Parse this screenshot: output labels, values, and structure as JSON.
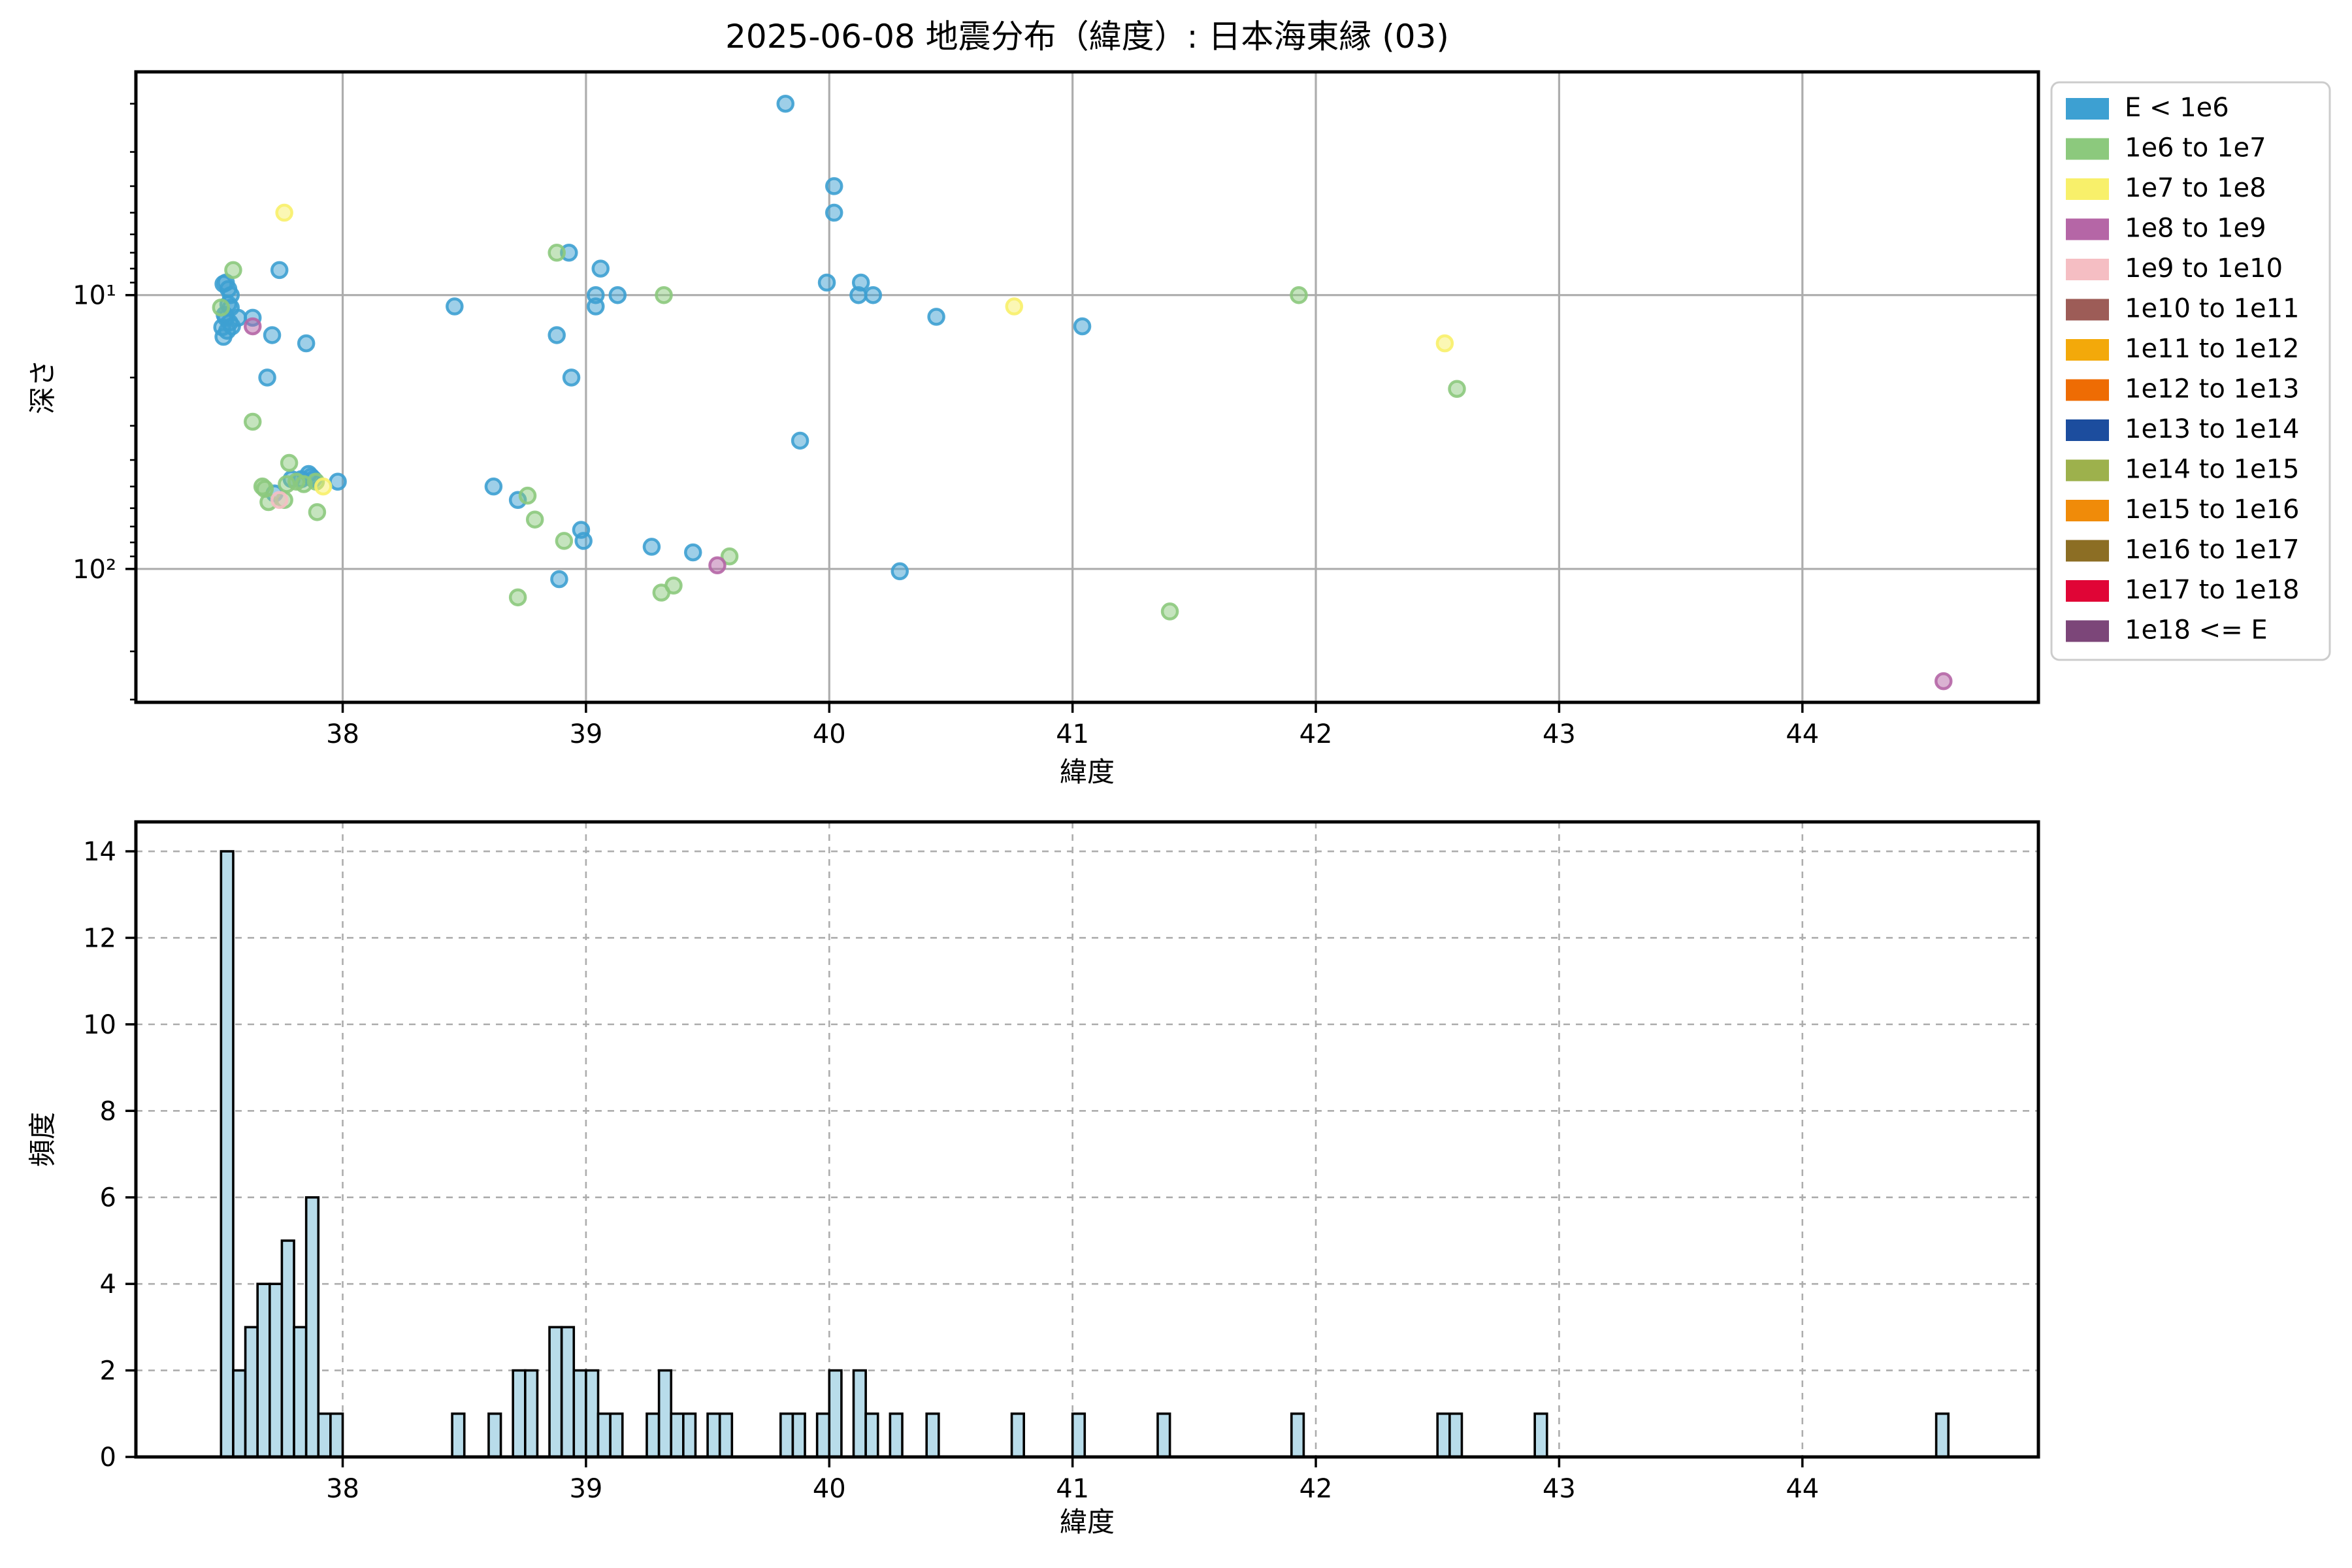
{
  "title": "2025-06-08 地震分布（緯度）: 日本海東縁 (03)",
  "legend": {
    "entries": [
      {
        "label": "E < 1e6",
        "color": "#3da0d2"
      },
      {
        "label": "1e6 to 1e7",
        "color": "#8cc97d"
      },
      {
        "label": "1e7 to 1e8",
        "color": "#f8f06a"
      },
      {
        "label": "1e8 to 1e9",
        "color": "#b566a6"
      },
      {
        "label": "1e9 to 1e10",
        "color": "#f5bec3"
      },
      {
        "label": "1e10 to 1e11",
        "color": "#9d5c57"
      },
      {
        "label": "1e11 to 1e12",
        "color": "#f3a90a"
      },
      {
        "label": "1e12 to 1e13",
        "color": "#ee6c04"
      },
      {
        "label": "1e13 to 1e14",
        "color": "#1c4d9e"
      },
      {
        "label": "1e14 to 1e15",
        "color": "#9db14c"
      },
      {
        "label": "1e15 to 1e16",
        "color": "#f08b09"
      },
      {
        "label": "1e16 to 1e17",
        "color": "#8c6e24"
      },
      {
        "label": "1e17 to 1e18",
        "color": "#e00536"
      },
      {
        "label": "1e18 <= E",
        "color": "#7c4679"
      }
    ]
  },
  "chart_data": [
    {
      "type": "scatter",
      "title": "",
      "xlabel": "緯度",
      "ylabel": "深さ",
      "x_range": [
        37.15,
        44.97
      ],
      "y_log_range": [
        1.53,
        307
      ],
      "y_inverted": true,
      "grid": "solid",
      "xticks": [
        38,
        39,
        40,
        41,
        42,
        43,
        44
      ],
      "yticks": [
        {
          "value": 10,
          "label": "10¹"
        },
        {
          "value": 100,
          "label": "10²"
        }
      ],
      "yminor": [
        2,
        3,
        4,
        5,
        6,
        7,
        8,
        9,
        20,
        30,
        40,
        50,
        60,
        70,
        80,
        90,
        200,
        300
      ],
      "series": [
        {
          "name": "E < 1e6",
          "color": "#3da0d2",
          "points": [
            [
              37.505,
              13.1
            ],
            [
              37.51,
              9.1
            ],
            [
              37.515,
              11.8
            ],
            [
              37.52,
              9.0
            ],
            [
              37.52,
              12.1
            ],
            [
              37.525,
              13.5
            ],
            [
              37.53,
              9.5
            ],
            [
              37.535,
              12.6
            ],
            [
              37.54,
              10.0
            ],
            [
              37.54,
              11.1
            ],
            [
              37.545,
              13.0
            ],
            [
              37.51,
              14.2
            ],
            [
              37.53,
              10.8
            ],
            [
              37.57,
              12.1
            ],
            [
              37.63,
              12.1
            ],
            [
              37.69,
              20
            ],
            [
              37.71,
              14
            ],
            [
              37.72,
              53
            ],
            [
              37.74,
              8.1
            ],
            [
              37.79,
              47
            ],
            [
              37.83,
              47
            ],
            [
              37.85,
              15
            ],
            [
              37.86,
              45
            ],
            [
              37.87,
              46
            ],
            [
              37.88,
              47
            ],
            [
              37.98,
              48
            ],
            [
              38.46,
              11
            ],
            [
              38.62,
              50
            ],
            [
              38.72,
              56
            ],
            [
              38.88,
              14
            ],
            [
              38.89,
              109
            ],
            [
              38.93,
              7
            ],
            [
              38.94,
              20
            ],
            [
              38.98,
              72
            ],
            [
              38.99,
              79
            ],
            [
              39.04,
              10
            ],
            [
              39.04,
              11
            ],
            [
              39.06,
              8
            ],
            [
              39.13,
              10
            ],
            [
              39.27,
              83
            ],
            [
              39.44,
              87
            ],
            [
              39.82,
              2.0
            ],
            [
              39.88,
              34
            ],
            [
              39.99,
              9
            ],
            [
              40.02,
              4.0
            ],
            [
              40.02,
              5.0
            ],
            [
              40.12,
              10
            ],
            [
              40.13,
              9
            ],
            [
              40.18,
              10
            ],
            [
              40.29,
              102
            ],
            [
              40.44,
              12
            ],
            [
              41.04,
              13
            ]
          ]
        },
        {
          "name": "1e6 to 1e7",
          "color": "#8cc97d",
          "points": [
            [
              37.5,
              11.1
            ],
            [
              37.55,
              8.1
            ],
            [
              37.63,
              29
            ],
            [
              37.67,
              50
            ],
            [
              37.68,
              51
            ],
            [
              37.695,
              57
            ],
            [
              37.76,
              56
            ],
            [
              37.77,
              49
            ],
            [
              37.78,
              41
            ],
            [
              37.81,
              48
            ],
            [
              37.84,
              49
            ],
            [
              37.89,
              48
            ],
            [
              37.895,
              62
            ],
            [
              38.76,
              54
            ],
            [
              38.79,
              66
            ],
            [
              38.88,
              7
            ],
            [
              38.91,
              79
            ],
            [
              38.72,
              127
            ],
            [
              39.31,
              122
            ],
            [
              39.32,
              10
            ],
            [
              39.36,
              115
            ],
            [
              39.59,
              90
            ],
            [
              41.4,
              143
            ],
            [
              41.93,
              10
            ],
            [
              42.58,
              22
            ]
          ]
        },
        {
          "name": "1e7 to 1e8",
          "color": "#f8f06a",
          "points": [
            [
              37.76,
              5.0
            ],
            [
              37.92,
              50
            ],
            [
              40.76,
              11
            ],
            [
              42.53,
              15
            ]
          ]
        },
        {
          "name": "1e8 to 1e9",
          "color": "#b566a6",
          "points": [
            [
              37.63,
              13.0
            ],
            [
              39.54,
              97
            ],
            [
              44.58,
              257
            ]
          ]
        },
        {
          "name": "1e9 to 1e10",
          "color": "#f5bec3",
          "points": [
            [
              37.74,
              56
            ]
          ]
        }
      ]
    },
    {
      "type": "bar",
      "title": "",
      "xlabel": "緯度",
      "ylabel": "頻度",
      "x_range": [
        37.15,
        44.97
      ],
      "ylim": [
        0,
        14.68
      ],
      "grid": "dashed",
      "xticks": [
        38,
        39,
        40,
        41,
        42,
        43,
        44
      ],
      "yticks": [
        0,
        2,
        4,
        6,
        8,
        10,
        12,
        14
      ],
      "bin_width": 0.05,
      "bar_color": "#b8dcea",
      "bar_edge": "#000000",
      "bins": [
        [
          37.5,
          14
        ],
        [
          37.55,
          2
        ],
        [
          37.6,
          3
        ],
        [
          37.65,
          4
        ],
        [
          37.7,
          4
        ],
        [
          37.75,
          5
        ],
        [
          37.8,
          3
        ],
        [
          37.85,
          6
        ],
        [
          37.9,
          1
        ],
        [
          37.95,
          1
        ],
        [
          38.45,
          1
        ],
        [
          38.6,
          1
        ],
        [
          38.7,
          2
        ],
        [
          38.75,
          2
        ],
        [
          38.85,
          3
        ],
        [
          38.9,
          3
        ],
        [
          38.95,
          2
        ],
        [
          39.0,
          2
        ],
        [
          39.05,
          1
        ],
        [
          39.1,
          1
        ],
        [
          39.25,
          1
        ],
        [
          39.3,
          2
        ],
        [
          39.35,
          1
        ],
        [
          39.4,
          1
        ],
        [
          39.5,
          1
        ],
        [
          39.55,
          1
        ],
        [
          39.8,
          1
        ],
        [
          39.85,
          1
        ],
        [
          39.95,
          1
        ],
        [
          40.0,
          2
        ],
        [
          40.1,
          2
        ],
        [
          40.15,
          1
        ],
        [
          40.25,
          1
        ],
        [
          40.4,
          1
        ],
        [
          40.75,
          1
        ],
        [
          41.0,
          1
        ],
        [
          41.35,
          1
        ],
        [
          41.9,
          1
        ],
        [
          42.5,
          1
        ],
        [
          42.55,
          1
        ],
        [
          42.9,
          1
        ],
        [
          44.55,
          1
        ]
      ]
    }
  ],
  "style": {
    "grid_color": "#adadad",
    "spine_color": "#000000",
    "tick_color": "#000000",
    "legend_border": "#cccccc",
    "background": "#ffffff"
  }
}
